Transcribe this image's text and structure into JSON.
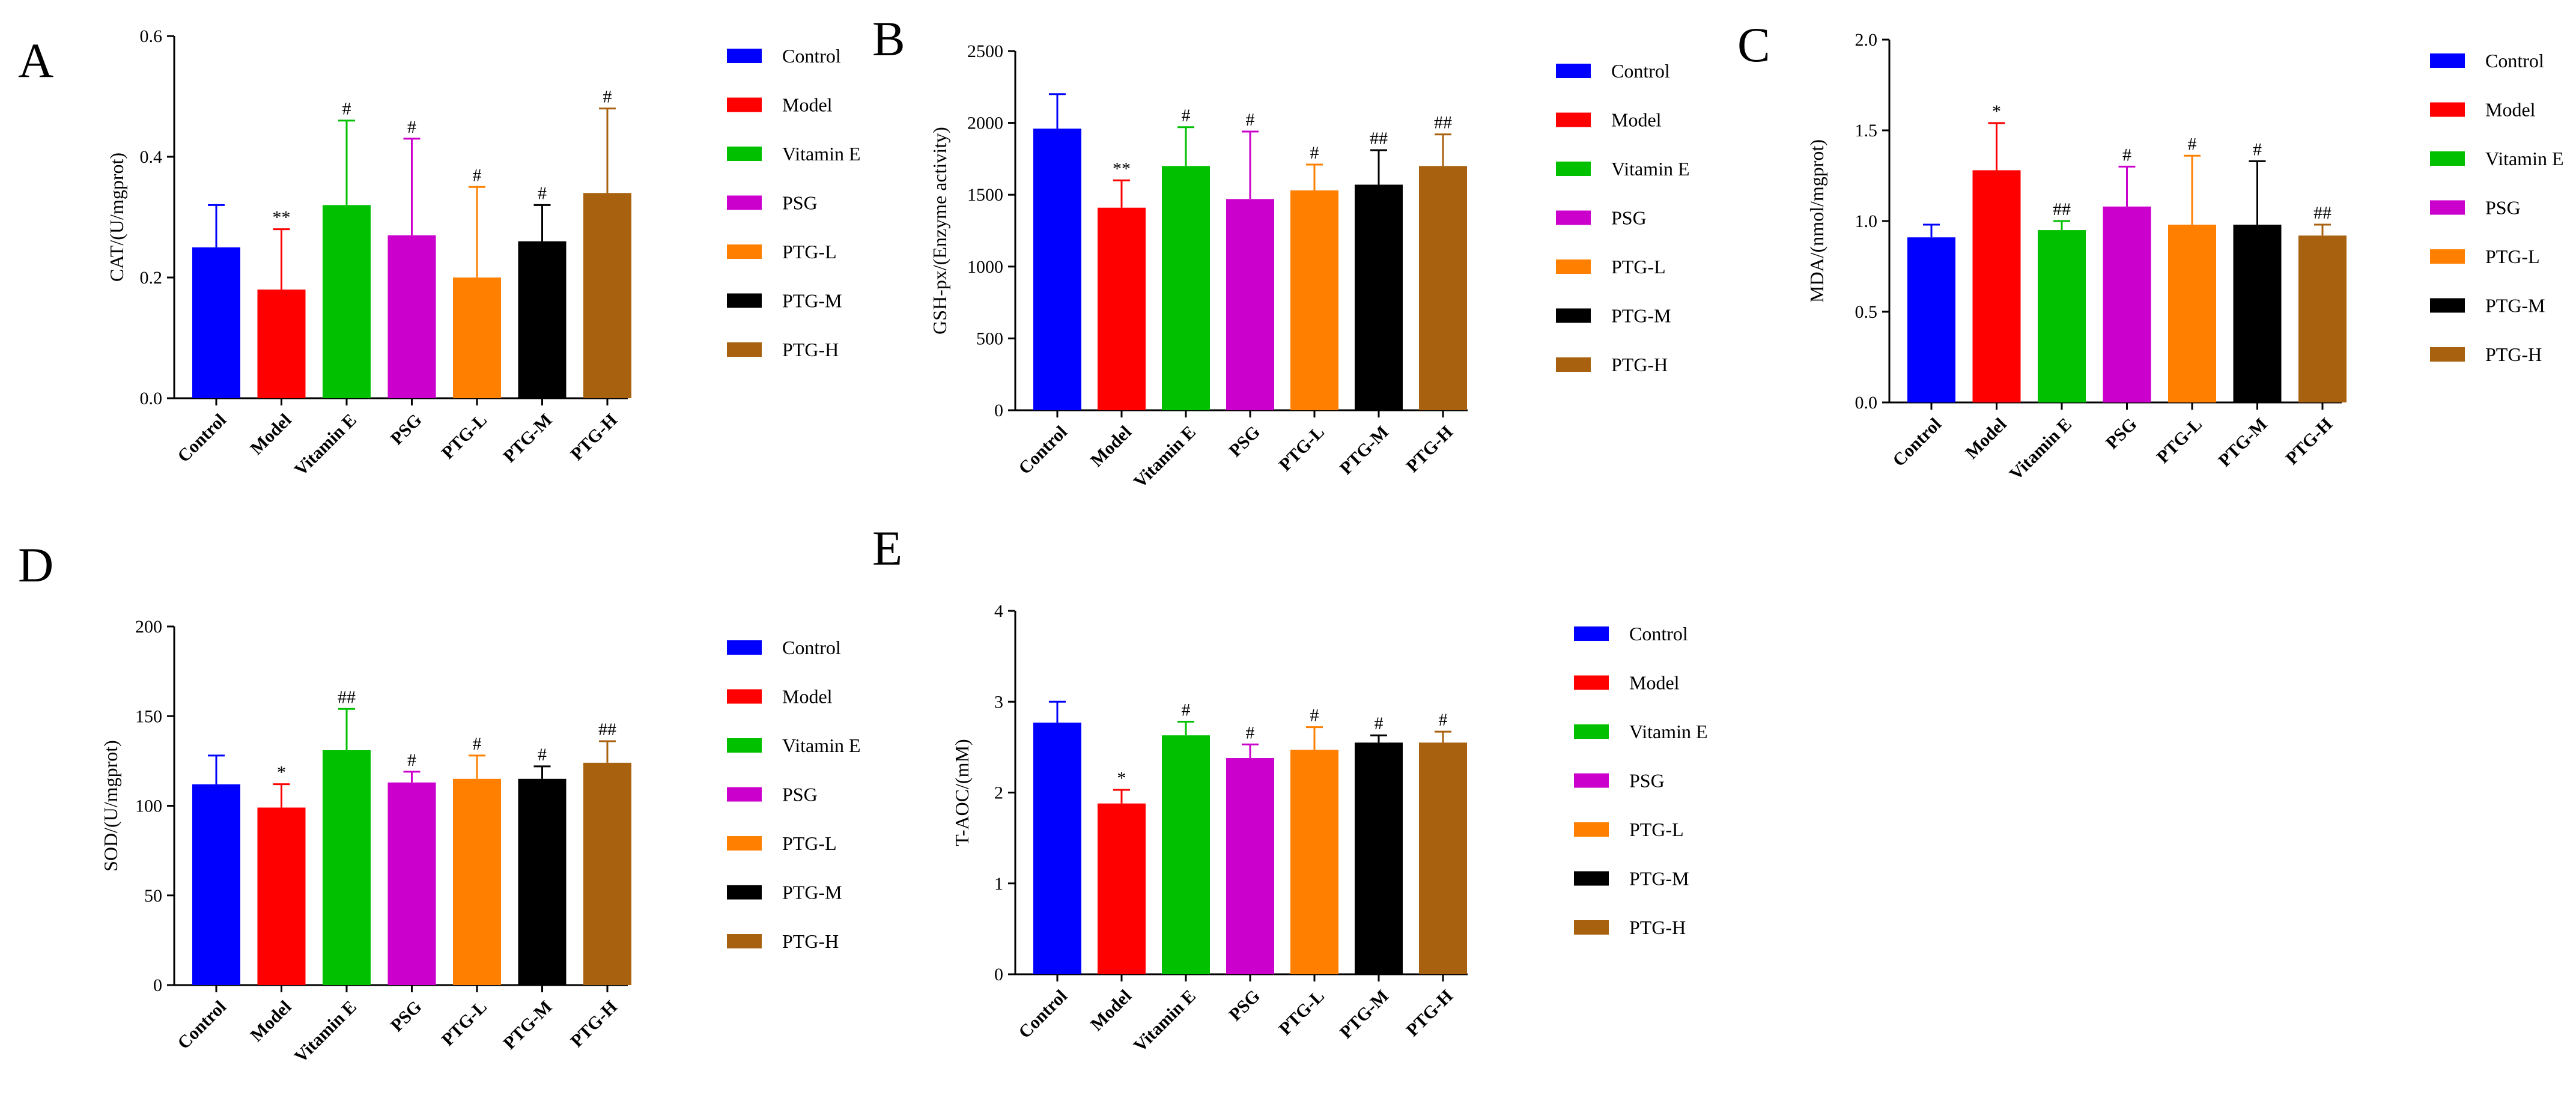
{
  "colors": {
    "Control": "#0000FF",
    "Model": "#FF0000",
    "Vitamin E": "#00C000",
    "PSG": "#CC00CC",
    "PTG-L": "#FF8000",
    "PTG-M": "#000000",
    "PTG-H": "#A8620F"
  },
  "chart_data": [
    {
      "panel": "A",
      "type": "bar",
      "ylabel": "CAT/(U/mgprot)",
      "ylim": [
        0,
        0.6
      ],
      "yticks": [
        "0.0",
        "0.2",
        "0.4",
        "0.6"
      ],
      "categories": [
        "Control",
        "Model",
        "Vitamin E",
        "PSG",
        "PTG-L",
        "PTG-M",
        "PTG-H"
      ],
      "values": [
        0.25,
        0.18,
        0.32,
        0.27,
        0.2,
        0.26,
        0.34
      ],
      "errors": [
        0.07,
        0.1,
        0.14,
        0.16,
        0.15,
        0.06,
        0.14
      ],
      "significance": [
        "",
        "**",
        "#",
        "#",
        "#",
        "#",
        "#"
      ],
      "legend": [
        "Control",
        "Model",
        "Vitamin E",
        "PSG",
        "PTG-L",
        "PTG-M",
        "PTG-H"
      ]
    },
    {
      "panel": "B",
      "type": "bar",
      "ylabel": "GSH-px/(Enzyme activity)",
      "ylim": [
        0,
        2500
      ],
      "yticks": [
        "0",
        "500",
        "1000",
        "1500",
        "2000",
        "2500"
      ],
      "categories": [
        "Control",
        "Model",
        "Vitamin E",
        "PSG",
        "PTG-L",
        "PTG-M",
        "PTG-H"
      ],
      "values": [
        1960,
        1410,
        1700,
        1470,
        1530,
        1570,
        1700
      ],
      "errors": [
        240,
        190,
        270,
        470,
        180,
        240,
        220
      ],
      "significance": [
        "",
        "**",
        "#",
        "#",
        "#",
        "##",
        "##"
      ],
      "legend": [
        "Control",
        "Model",
        "Vitamin E",
        "PSG",
        "PTG-L",
        "PTG-M",
        "PTG-H"
      ]
    },
    {
      "panel": "C",
      "type": "bar",
      "ylabel": "MDA/(nmol/mgprot)",
      "ylim": [
        0,
        2.0
      ],
      "yticks": [
        "0.0",
        "0.5",
        "1.0",
        "1.5",
        "2.0"
      ],
      "categories": [
        "Control",
        "Model",
        "Vitamin E",
        "PSG",
        "PTG-L",
        "PTG-M",
        "PTG-H"
      ],
      "values": [
        0.91,
        1.28,
        0.95,
        1.08,
        0.98,
        0.98,
        0.92
      ],
      "errors": [
        0.07,
        0.26,
        0.05,
        0.22,
        0.38,
        0.35,
        0.06
      ],
      "significance": [
        "",
        "*",
        "##",
        "#",
        "#",
        "#",
        "##"
      ],
      "legend": [
        "Control",
        "Model",
        "Vitamin E",
        "PSG",
        "PTG-L",
        "PTG-M",
        "PTG-H"
      ]
    },
    {
      "panel": "D",
      "type": "bar",
      "ylabel": "SOD/(U/mgprot)",
      "ylim": [
        0,
        200
      ],
      "yticks": [
        "0",
        "50",
        "100",
        "150",
        "200"
      ],
      "categories": [
        "Control",
        "Model",
        "Vitamin E",
        "PSG",
        "PTG-L",
        "PTG-M",
        "PTG-H"
      ],
      "values": [
        112,
        99,
        131,
        113,
        115,
        115,
        124
      ],
      "errors": [
        16,
        13,
        23,
        6,
        13,
        7,
        12
      ],
      "significance": [
        "",
        "*",
        "##",
        "#",
        "#",
        "#",
        "##"
      ],
      "legend": [
        "Control",
        "Model",
        "Vitamin E",
        "PSG",
        "PTG-L",
        "PTG-M",
        "PTG-H"
      ]
    },
    {
      "panel": "E",
      "type": "bar",
      "ylabel": "T-AOC/(mM)",
      "ylim": [
        0,
        4
      ],
      "yticks": [
        "0",
        "1",
        "2",
        "3",
        "4"
      ],
      "categories": [
        "Control",
        "Model",
        "Vitamin E",
        "PSG",
        "PTG-L",
        "PTG-M",
        "PTG-H"
      ],
      "values": [
        2.77,
        1.88,
        2.63,
        2.38,
        2.47,
        2.55,
        2.55
      ],
      "errors": [
        0.23,
        0.15,
        0.15,
        0.15,
        0.25,
        0.08,
        0.12
      ],
      "significance": [
        "",
        "*",
        "#",
        "#",
        "#",
        "#",
        "#"
      ],
      "legend": [
        "Control",
        "Model",
        "Vitamin E",
        "PSG",
        "PTG-L",
        "PTG-M",
        "PTG-H"
      ]
    }
  ]
}
